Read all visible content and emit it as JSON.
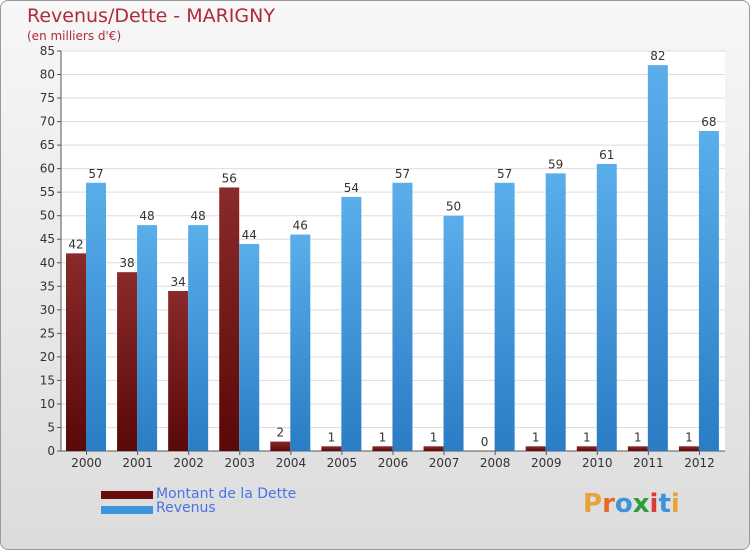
{
  "chart_data": {
    "type": "bar",
    "title": "Revenus/Dette - MARIGNY",
    "subtitle": "(en milliers d'€)",
    "categories": [
      "2000",
      "2001",
      "2002",
      "2003",
      "2004",
      "2005",
      "2006",
      "2007",
      "2008",
      "2009",
      "2010",
      "2011",
      "2012"
    ],
    "series": [
      {
        "name": "Montant de la Dette",
        "color": "#7a1515",
        "values": [
          42,
          38,
          34,
          56,
          2,
          1,
          1,
          1,
          0,
          1,
          1,
          1,
          1
        ]
      },
      {
        "name": "Revenus",
        "color": "#3d94db",
        "values": [
          57,
          48,
          48,
          44,
          46,
          54,
          57,
          50,
          57,
          59,
          61,
          82,
          68
        ]
      }
    ],
    "ylim": [
      0,
      85
    ],
    "yticks": [
      0,
      5,
      10,
      15,
      20,
      25,
      30,
      35,
      40,
      45,
      50,
      55,
      60,
      65,
      70,
      75,
      80,
      85
    ],
    "grid": true,
    "legend_position": "bottom-left"
  },
  "logo": {
    "letters": [
      "P",
      "r",
      "o",
      "x",
      "i",
      "t",
      "i"
    ],
    "colors": [
      "#e8a23a",
      "#e86a2a",
      "#3d94db",
      "#2e9e3a",
      "#d83a3a",
      "#3d94db",
      "#e8a23a"
    ]
  }
}
